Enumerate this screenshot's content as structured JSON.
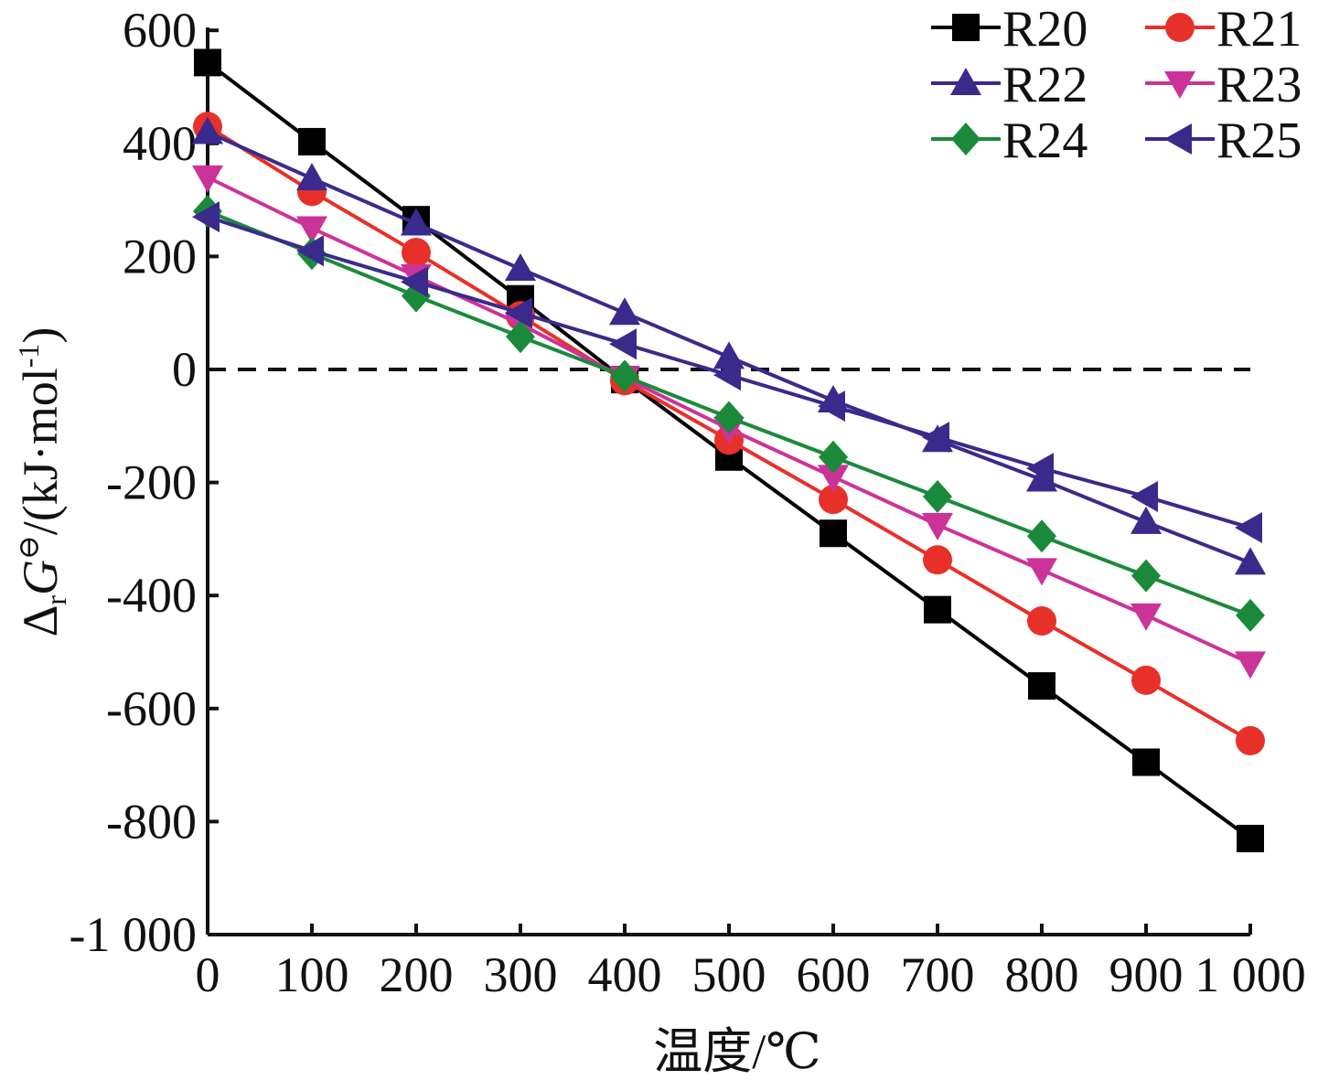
{
  "chart_data": {
    "type": "line",
    "title": "",
    "xlabel": "温度/℃",
    "ylabel": "ΔrG⊖/(kJ·mol-1)",
    "ylabel_parts": {
      "delta": "Δ",
      "sub": "r",
      "sym": "G",
      "std": "⊖",
      "rest": "/(kJ·mol",
      "sup": "-1",
      "close": ")"
    },
    "xlim": [
      0,
      1000
    ],
    "ylim": [
      -1000,
      600
    ],
    "x": [
      0,
      100,
      200,
      300,
      400,
      500,
      600,
      700,
      800,
      900,
      1000
    ],
    "x_tick_labels": [
      "0",
      "100",
      "200",
      "300",
      "400",
      "500",
      "600",
      "700",
      "800",
      "900",
      "1 000"
    ],
    "y_ticks": [
      600,
      400,
      200,
      0,
      -200,
      -400,
      -600,
      -800,
      -1000
    ],
    "y_tick_labels": [
      "600",
      "400",
      "200",
      "0",
      "-200",
      "-400",
      "-600",
      "-800",
      "-1 000"
    ],
    "zero_line": "dashed",
    "grid": false,
    "legend_position": "top-right",
    "series": [
      {
        "name": "R20",
        "color": "#000000",
        "marker": "square",
        "values": [
          543,
          403,
          265,
          125,
          -18,
          -155,
          -290,
          -425,
          -560,
          -695,
          -830
        ]
      },
      {
        "name": "R21",
        "color": "#e8302a",
        "marker": "circle",
        "values": [
          430,
          315,
          207,
          95,
          -20,
          -125,
          -230,
          -337,
          -445,
          -550,
          -657
        ]
      },
      {
        "name": "R22",
        "color": "#3a2a8c",
        "marker": "triangle-up",
        "values": [
          420,
          338,
          258,
          178,
          100,
          22,
          -55,
          -125,
          -195,
          -270,
          -342
        ]
      },
      {
        "name": "R23",
        "color": "#cc3399",
        "marker": "triangle-down",
        "values": [
          340,
          250,
          165,
          80,
          -15,
          -105,
          -190,
          -275,
          -355,
          -435,
          -520
        ]
      },
      {
        "name": "R24",
        "color": "#1a8a3a",
        "marker": "diamond",
        "values": [
          280,
          205,
          130,
          58,
          -12,
          -85,
          -155,
          -225,
          -295,
          -365,
          -435
        ]
      },
      {
        "name": "R25",
        "color": "#3a2a8c",
        "marker": "triangle-left",
        "values": [
          270,
          210,
          155,
          100,
          45,
          -10,
          -65,
          -120,
          -175,
          -225,
          -280
        ]
      }
    ]
  }
}
